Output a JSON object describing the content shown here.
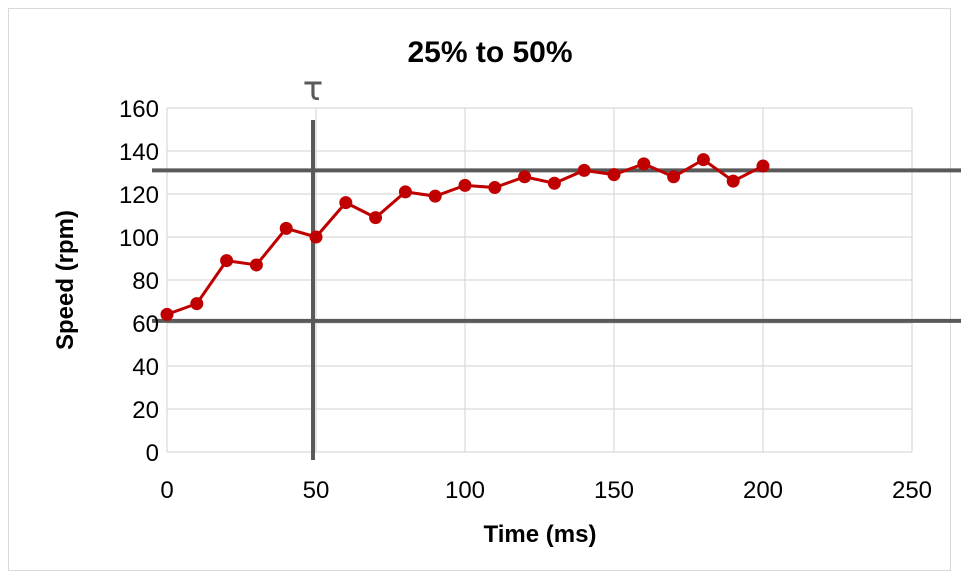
{
  "chart_data": {
    "type": "scatter",
    "title": "25% to 50%",
    "xlabel": "Time (ms)",
    "ylabel": "Speed (rpm)",
    "xlim": [
      0,
      250
    ],
    "ylim": [
      0,
      160
    ],
    "x_ticks": [
      "0",
      "50",
      "100",
      "150",
      "200",
      "250"
    ],
    "y_ticks": [
      "0",
      "20",
      "40",
      "60",
      "80",
      "100",
      "120",
      "140",
      "160"
    ],
    "grid": true,
    "series": [
      {
        "color": "#c00000",
        "lines": true,
        "markers": true,
        "x": [
          0,
          10,
          20,
          30,
          40,
          50,
          60,
          70,
          80,
          90,
          100,
          110,
          120,
          130,
          140,
          150,
          160,
          170,
          180,
          190,
          200
        ],
        "y": [
          64,
          69,
          89,
          87,
          104,
          100,
          116,
          109,
          121,
          119,
          124,
          123,
          128,
          125,
          131,
          129,
          134,
          128,
          136,
          126,
          133
        ]
      }
    ],
    "reference_lines": [
      {
        "orientation": "horizontal",
        "value": 131,
        "color": "#595959"
      },
      {
        "orientation": "horizontal",
        "value": 61,
        "color": "#595959"
      },
      {
        "orientation": "vertical",
        "value": 49,
        "color": "#595959",
        "label": "τ"
      }
    ]
  }
}
